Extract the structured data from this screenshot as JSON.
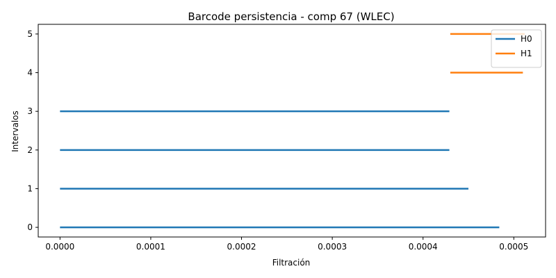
{
  "chart_data": {
    "type": "bar",
    "subtype": "barcode",
    "title": "Barcode persistencia - comp 67 (WLEC)",
    "xlabel": "Filtración",
    "ylabel": "Intervalos",
    "xlim": [
      -2.4e-05,
      0.000535
    ],
    "ylim": [
      -0.25,
      5.25
    ],
    "xticks": [
      0.0,
      0.0001,
      0.0002,
      0.0003,
      0.0004,
      0.0005
    ],
    "xtick_labels": [
      "0.0000",
      "0.0001",
      "0.0002",
      "0.0003",
      "0.0004",
      "0.0005"
    ],
    "yticks": [
      0,
      1,
      2,
      3,
      4,
      5
    ],
    "ytick_labels": [
      "0",
      "1",
      "2",
      "3",
      "4",
      "5"
    ],
    "grid": false,
    "legend_position": "top-right",
    "series": [
      {
        "name": "H0",
        "color": "#1f77b4",
        "intervals": [
          {
            "index": 0,
            "birth": 0.0,
            "death": 0.000484
          },
          {
            "index": 1,
            "birth": 0.0,
            "death": 0.00045
          },
          {
            "index": 2,
            "birth": 0.0,
            "death": 0.000429
          },
          {
            "index": 3,
            "birth": 0.0,
            "death": 0.000429
          }
        ]
      },
      {
        "name": "H1",
        "color": "#ff7f0e",
        "intervals": [
          {
            "index": 4,
            "birth": 0.00043,
            "death": 0.00051
          },
          {
            "index": 5,
            "birth": 0.00043,
            "death": 0.000512
          }
        ]
      }
    ]
  }
}
